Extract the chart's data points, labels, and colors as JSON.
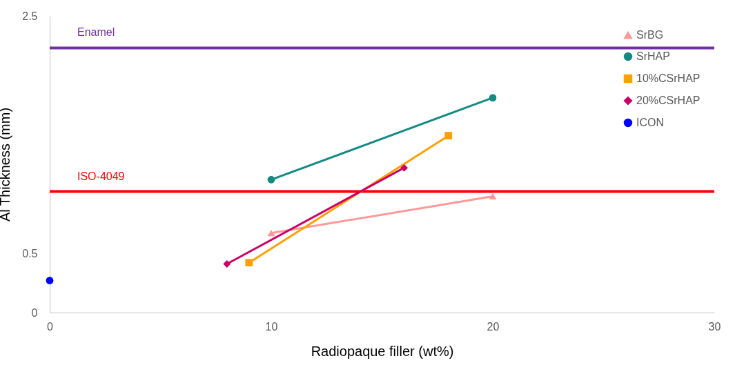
{
  "chart_data": {
    "type": "line",
    "xlabel": "Radiopaque filler (wt%)",
    "ylabel": "Al Thickness (mm)",
    "xlim": [
      0,
      30
    ],
    "xticks": [
      0,
      10,
      20,
      30
    ],
    "ylim": [
      0,
      2.5
    ],
    "yticks": [
      0,
      0.5,
      2.5
    ],
    "grid": false,
    "legend": "top right",
    "series": [
      {
        "name": "SrBG",
        "color": "#ff9999",
        "marker": "triangle",
        "x": [
          10,
          20
        ],
        "values": [
          0.67,
          0.98
        ]
      },
      {
        "name": "SrHAP",
        "color": "#138a82",
        "marker": "circle",
        "x": [
          10,
          20
        ],
        "values": [
          1.12,
          1.81
        ]
      },
      {
        "name": "10%CSrHAP",
        "color": "#ffa000",
        "marker": "square",
        "x": [
          9,
          18
        ],
        "values": [
          0.42,
          1.49
        ]
      },
      {
        "name": "20%CSrHAP",
        "color": "#cc0066",
        "marker": "diamond",
        "x": [
          8,
          16
        ],
        "values": [
          0.41,
          1.22
        ]
      },
      {
        "name": "ICON",
        "color": "#0000ff",
        "marker": "circle",
        "type": "scatter",
        "x": [
          0
        ],
        "values": [
          0.27
        ]
      }
    ],
    "ref_lines": [
      {
        "axis": "y",
        "value": 2.23,
        "label": "Enamel",
        "color": "#7030a0"
      },
      {
        "axis": "y",
        "value": 1.02,
        "label": "ISO-4049",
        "color": "#ff0000"
      }
    ]
  }
}
